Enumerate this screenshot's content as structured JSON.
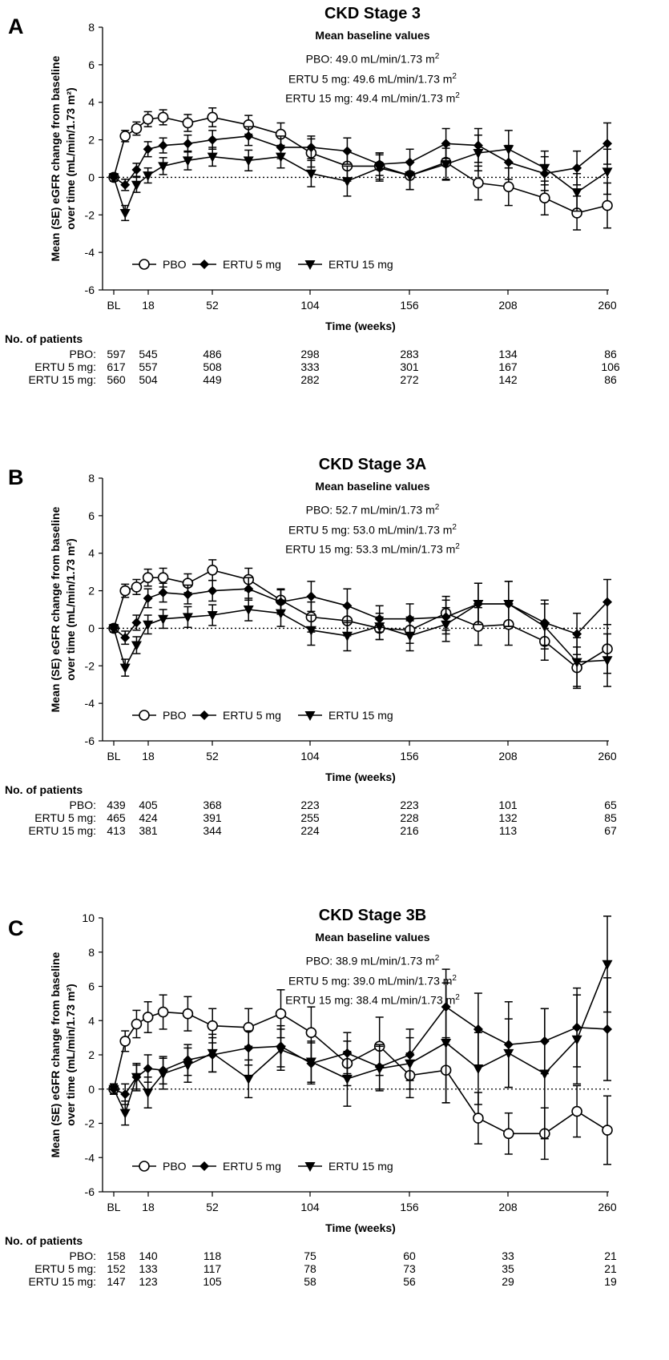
{
  "patients_heading": "No. of patients",
  "panels": [
    {
      "letter": "A",
      "title": "CKD Stage 3",
      "subtitle": "Mean baseline values",
      "baselines": [
        {
          "label": "PBO: 49.0 mL/min/1.73 m",
          "sup": "2"
        },
        {
          "label": "ERTU 5 mg: 49.6 mL/min/1.73 m",
          "sup": "2"
        },
        {
          "label": "ERTU 15 mg: 49.4 mL/min/1.73 m",
          "sup": "2"
        }
      ],
      "patients": {
        "weeks": [
          "BL",
          "18",
          "52",
          "104",
          "156",
          "208",
          "260"
        ],
        "rows": [
          {
            "label": "PBO:",
            "values": [
              "597",
              "545",
              "486",
              "298",
              "283",
              "134",
              "86"
            ]
          },
          {
            "label": "ERTU 5 mg:",
            "values": [
              "617",
              "557",
              "508",
              "333",
              "301",
              "167",
              "106"
            ]
          },
          {
            "label": "ERTU 15 mg:",
            "values": [
              "560",
              "504",
              "449",
              "282",
              "272",
              "142",
              "86"
            ]
          }
        ]
      }
    },
    {
      "letter": "B",
      "title": "CKD Stage 3A",
      "subtitle": "Mean baseline values",
      "baselines": [
        {
          "label": "PBO: 52.7 mL/min/1.73 m",
          "sup": "2"
        },
        {
          "label": "ERTU 5 mg: 53.0 mL/min/1.73 m",
          "sup": "2"
        },
        {
          "label": "ERTU 15 mg: 53.3 mL/min/1.73 m",
          "sup": "2"
        }
      ],
      "patients": {
        "weeks": [
          "BL",
          "18",
          "52",
          "104",
          "156",
          "208",
          "260"
        ],
        "rows": [
          {
            "label": "PBO:",
            "values": [
              "439",
              "405",
              "368",
              "223",
              "223",
              "101",
              "65"
            ]
          },
          {
            "label": "ERTU 5 mg:",
            "values": [
              "465",
              "424",
              "391",
              "255",
              "228",
              "132",
              "85"
            ]
          },
          {
            "label": "ERTU 15 mg:",
            "values": [
              "413",
              "381",
              "344",
              "224",
              "216",
              "113",
              "67"
            ]
          }
        ]
      }
    },
    {
      "letter": "C",
      "title": "CKD Stage 3B",
      "subtitle": "Mean baseline values",
      "baselines": [
        {
          "label": "PBO: 38.9 mL/min/1.73 m",
          "sup": "2"
        },
        {
          "label": "ERTU 5 mg: 39.0 mL/min/1.73 m",
          "sup": "2"
        },
        {
          "label": "ERTU 15 mg: 38.4 mL/min/1.73 m",
          "sup": "2"
        }
      ],
      "patients": {
        "weeks": [
          "BL",
          "18",
          "52",
          "104",
          "156",
          "208",
          "260"
        ],
        "rows": [
          {
            "label": "PBO:",
            "values": [
              "158",
              "140",
              "118",
              "75",
              "60",
              "33",
              "21"
            ]
          },
          {
            "label": "ERTU 5 mg:",
            "values": [
              "152",
              "133",
              "117",
              "78",
              "73",
              "35",
              "21"
            ]
          },
          {
            "label": "ERTU 15 mg:",
            "values": [
              "147",
              "123",
              "105",
              "58",
              "56",
              "29",
              "19"
            ]
          }
        ]
      }
    }
  ],
  "chart_data": [
    {
      "type": "line",
      "title": "CKD Stage 3",
      "xlabel": "Time (weeks)",
      "ylabel": "Mean (SE) eGFR change from baseline over time (mL/min/1.73 m²)",
      "xticks": [
        "BL",
        "18",
        "52",
        "104",
        "156",
        "208",
        "260"
      ],
      "xtick_values": [
        0,
        18,
        52,
        104,
        156,
        208,
        260
      ],
      "xlim": [
        -6,
        262
      ],
      "ylim": [
        -6,
        8
      ],
      "yticks": [
        -6,
        -4,
        -2,
        0,
        2,
        4,
        6,
        8
      ],
      "reference_line": 0,
      "legend_placement": "bottom-left",
      "series": [
        {
          "name": "PBO",
          "marker": "open-circle",
          "x": [
            0,
            6,
            12,
            18,
            26,
            39,
            52,
            71,
            88,
            104,
            123,
            140,
            156,
            175,
            192,
            208,
            227,
            244,
            260
          ],
          "y": [
            0,
            2.2,
            2.6,
            3.1,
            3.2,
            2.9,
            3.2,
            2.8,
            2.3,
            1.3,
            0.6,
            0.6,
            0.1,
            0.8,
            -0.3,
            -0.5,
            -1.1,
            -1.9,
            -1.5
          ],
          "se": [
            0.2,
            0.3,
            0.35,
            0.4,
            0.4,
            0.45,
            0.5,
            0.5,
            0.6,
            0.75,
            0.8,
            0.7,
            0.75,
            0.9,
            0.9,
            1.0,
            0.9,
            0.9,
            1.2
          ]
        },
        {
          "name": "ERTU 5 mg",
          "marker": "filled-diamond",
          "x": [
            0,
            6,
            12,
            18,
            26,
            39,
            52,
            71,
            88,
            104,
            123,
            140,
            156,
            175,
            192,
            208,
            227,
            244,
            260
          ],
          "y": [
            0,
            -0.4,
            0.4,
            1.5,
            1.7,
            1.8,
            2.0,
            2.2,
            1.6,
            1.6,
            1.4,
            0.7,
            0.8,
            1.8,
            1.7,
            0.8,
            0.2,
            0.5,
            1.8
          ],
          "se": [
            0.2,
            0.3,
            0.35,
            0.4,
            0.4,
            0.45,
            0.5,
            0.5,
            0.6,
            0.6,
            0.7,
            0.6,
            0.7,
            0.8,
            0.9,
            0.9,
            0.9,
            0.9,
            1.1
          ]
        },
        {
          "name": "ERTU 15 mg",
          "marker": "filled-down-triangle",
          "x": [
            0,
            6,
            12,
            18,
            26,
            39,
            52,
            71,
            88,
            104,
            123,
            140,
            156,
            175,
            192,
            208,
            227,
            244,
            260
          ],
          "y": [
            0,
            -1.9,
            -0.4,
            0.1,
            0.6,
            0.9,
            1.1,
            0.9,
            1.1,
            0.2,
            -0.2,
            0.5,
            0.1,
            0.7,
            1.3,
            1.5,
            0.5,
            -0.8,
            0.3
          ],
          "se": [
            0.2,
            0.4,
            0.4,
            0.4,
            0.45,
            0.5,
            0.5,
            0.55,
            0.6,
            0.7,
            0.8,
            0.7,
            0.75,
            0.85,
            0.95,
            1.0,
            0.9,
            1.0,
            1.2
          ]
        }
      ]
    },
    {
      "type": "line",
      "title": "CKD Stage 3A",
      "xlabel": "Time (weeks)",
      "ylabel": "Mean (SE) eGFR change from baseline over time (mL/min/1.73 m²)",
      "xticks": [
        "BL",
        "18",
        "52",
        "104",
        "156",
        "208",
        "260"
      ],
      "xtick_values": [
        0,
        18,
        52,
        104,
        156,
        208,
        260
      ],
      "xlim": [
        -6,
        262
      ],
      "ylim": [
        -6,
        8
      ],
      "yticks": [
        -6,
        -4,
        -2,
        0,
        2,
        4,
        6,
        8
      ],
      "reference_line": 0,
      "legend_placement": "bottom-left",
      "series": [
        {
          "name": "PBO",
          "marker": "open-circle",
          "x": [
            0,
            6,
            12,
            18,
            26,
            39,
            52,
            71,
            88,
            104,
            123,
            140,
            156,
            175,
            192,
            208,
            227,
            244,
            260
          ],
          "y": [
            0,
            2.0,
            2.2,
            2.7,
            2.7,
            2.4,
            3.1,
            2.6,
            1.5,
            0.6,
            0.4,
            0.0,
            -0.1,
            0.8,
            0.1,
            0.2,
            -0.7,
            -2.1,
            -1.1
          ],
          "se": [
            0.2,
            0.35,
            0.4,
            0.45,
            0.5,
            0.5,
            0.55,
            0.6,
            0.6,
            0.8,
            0.8,
            0.6,
            0.7,
            0.9,
            1.0,
            1.1,
            1.0,
            1.1,
            1.3
          ]
        },
        {
          "name": "ERTU 5 mg",
          "marker": "filled-diamond",
          "x": [
            0,
            6,
            12,
            18,
            26,
            39,
            52,
            71,
            88,
            104,
            123,
            140,
            156,
            175,
            192,
            208,
            227,
            244,
            260
          ],
          "y": [
            0,
            -0.5,
            0.3,
            1.6,
            1.9,
            1.8,
            2.0,
            2.1,
            1.4,
            1.7,
            1.2,
            0.5,
            0.5,
            0.6,
            1.3,
            1.3,
            0.3,
            -0.3,
            1.4
          ],
          "se": [
            0.2,
            0.35,
            0.4,
            0.5,
            0.5,
            0.5,
            0.55,
            0.6,
            0.65,
            0.8,
            0.9,
            0.7,
            0.8,
            0.9,
            1.1,
            1.2,
            1.2,
            1.1,
            1.2
          ]
        },
        {
          "name": "ERTU 15 mg",
          "marker": "filled-down-triangle",
          "x": [
            0,
            6,
            12,
            18,
            26,
            39,
            52,
            71,
            88,
            104,
            123,
            140,
            156,
            175,
            192,
            208,
            227,
            244,
            260
          ],
          "y": [
            0,
            -2.1,
            -0.9,
            0.2,
            0.5,
            0.6,
            0.7,
            1.0,
            0.8,
            -0.1,
            -0.4,
            0.1,
            -0.4,
            0.2,
            1.3,
            1.3,
            0.1,
            -1.8,
            -1.7
          ],
          "se": [
            0.2,
            0.45,
            0.45,
            0.5,
            0.5,
            0.55,
            0.55,
            0.6,
            0.7,
            0.8,
            0.8,
            0.7,
            0.8,
            0.9,
            1.1,
            1.2,
            1.2,
            1.3,
            1.4
          ]
        }
      ]
    },
    {
      "type": "line",
      "title": "CKD Stage 3B",
      "xlabel": "Time (weeks)",
      "ylabel": "Mean (SE) eGFR change from baseline over time (mL/min/1.73 m²)",
      "xticks": [
        "BL",
        "18",
        "52",
        "104",
        "156",
        "208",
        "260"
      ],
      "xtick_values": [
        0,
        18,
        52,
        104,
        156,
        208,
        260
      ],
      "xlim": [
        -6,
        262
      ],
      "ylim": [
        -6,
        10
      ],
      "yticks": [
        -6,
        -4,
        -2,
        0,
        2,
        4,
        6,
        8,
        10
      ],
      "reference_line": 0,
      "legend_placement": "bottom-left",
      "series": [
        {
          "name": "PBO",
          "marker": "open-circle",
          "x": [
            0,
            6,
            12,
            18,
            26,
            39,
            52,
            71,
            88,
            104,
            123,
            140,
            156,
            175,
            192,
            208,
            227,
            244,
            260
          ],
          "y": [
            0,
            2.8,
            3.8,
            4.2,
            4.5,
            4.4,
            3.7,
            3.6,
            4.4,
            3.3,
            1.5,
            2.5,
            0.8,
            1.1,
            -1.7,
            -2.6,
            -2.6,
            -1.3,
            -2.4
          ],
          "se": [
            0.3,
            0.6,
            0.8,
            0.9,
            1.0,
            1.0,
            1.0,
            1.1,
            1.4,
            1.5,
            1.3,
            1.7,
            1.3,
            1.9,
            1.5,
            1.2,
            1.5,
            1.5,
            2.0
          ]
        },
        {
          "name": "ERTU 5 mg",
          "marker": "filled-diamond",
          "x": [
            0,
            6,
            12,
            18,
            26,
            39,
            52,
            71,
            88,
            104,
            123,
            140,
            156,
            175,
            192,
            208,
            227,
            244,
            260
          ],
          "y": [
            0,
            -0.3,
            0.7,
            1.2,
            1.1,
            1.7,
            2.0,
            2.4,
            2.5,
            1.5,
            2.1,
            1.3,
            2.0,
            4.8,
            3.5,
            2.6,
            2.8,
            3.6,
            3.5
          ],
          "se": [
            0.3,
            0.6,
            0.7,
            0.8,
            0.8,
            0.9,
            1.0,
            1.0,
            1.2,
            1.2,
            1.2,
            1.3,
            1.5,
            2.2,
            2.1,
            2.5,
            1.9,
            2.3,
            3.0
          ]
        },
        {
          "name": "ERTU 15 mg",
          "marker": "filled-down-triangle",
          "x": [
            0,
            6,
            12,
            18,
            26,
            39,
            52,
            71,
            88,
            104,
            123,
            140,
            156,
            175,
            192,
            208,
            227,
            244,
            260
          ],
          "y": [
            0,
            -1.4,
            0.7,
            -0.2,
            0.9,
            1.4,
            2.1,
            0.6,
            2.3,
            1.6,
            0.6,
            1.2,
            1.5,
            2.7,
            1.2,
            2.1,
            0.9,
            2.9,
            7.3
          ],
          "se": [
            0.3,
            0.7,
            0.8,
            0.9,
            0.9,
            1.0,
            1.1,
            1.1,
            1.2,
            1.2,
            1.6,
            1.3,
            1.5,
            3.5,
            2.1,
            2.0,
            3.8,
            2.6,
            2.8
          ]
        }
      ]
    }
  ]
}
